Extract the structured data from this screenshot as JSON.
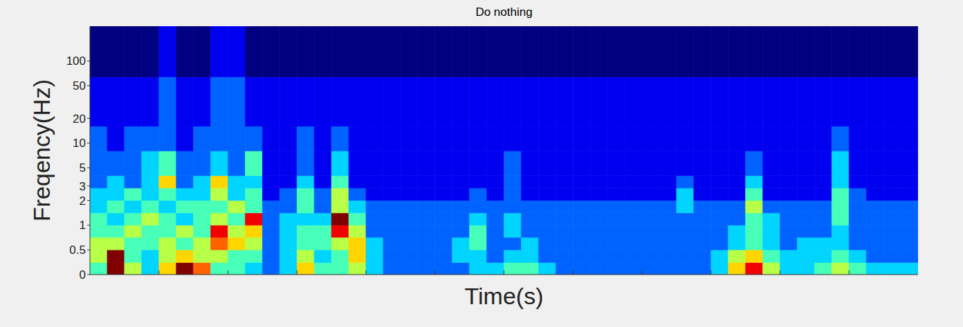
{
  "chart_data": {
    "type": "heatmap",
    "title": "Do nothing",
    "x_label": "Time(s)",
    "y_label": "Freqency(Hz)",
    "log": "y",
    "tick_labels": "y",
    "xlim": [
      0,
      12
    ],
    "xticks": [
      1,
      2,
      3,
      4,
      5,
      6,
      7,
      8,
      9,
      10,
      11
    ],
    "ylim": [
      0.25,
      265
    ],
    "yticks": [
      {
        "value": 0.25,
        "label": "0"
      },
      0.5,
      1,
      2,
      3,
      5,
      10,
      20,
      50,
      100
    ],
    "freq_edges": [
      0.25,
      0.35,
      0.5,
      0.71,
      1,
      1.41,
      2,
      2.83,
      4,
      8,
      16,
      64,
      265
    ],
    "cells": [
      [
        4,
        9,
        5,
        3,
        6,
        9,
        7,
        4,
        4,
        3,
        2,
        3,
        6,
        4,
        4,
        5,
        3,
        2,
        2,
        2,
        2,
        2,
        3,
        3,
        4,
        4,
        3,
        2,
        2,
        2,
        2,
        2,
        2,
        2,
        2,
        2,
        3,
        6,
        8,
        5,
        3,
        3,
        4,
        5,
        4,
        3,
        3,
        3
      ],
      [
        5,
        9,
        4,
        3,
        5,
        6,
        5,
        5,
        4,
        4,
        2,
        3,
        5,
        3,
        4,
        6,
        3,
        2,
        2,
        2,
        2,
        3,
        3,
        2,
        3,
        3,
        2,
        2,
        2,
        2,
        2,
        2,
        2,
        2,
        2,
        2,
        3,
        5,
        6,
        4,
        3,
        3,
        3,
        4,
        3,
        2,
        2,
        2
      ],
      [
        5,
        5,
        4,
        4,
        5,
        4,
        5,
        7,
        6,
        5,
        2,
        3,
        4,
        4,
        5,
        6,
        3,
        2,
        2,
        2,
        2,
        3,
        4,
        2,
        2,
        3,
        2,
        2,
        2,
        2,
        2,
        2,
        2,
        2,
        2,
        2,
        2,
        3,
        4,
        3,
        2,
        3,
        3,
        3,
        2,
        2,
        2,
        2
      ],
      [
        4,
        4,
        5,
        4,
        4,
        5,
        4,
        8,
        5,
        6,
        2,
        3,
        4,
        4,
        8,
        5,
        2,
        2,
        2,
        2,
        2,
        2,
        4,
        2,
        3,
        2,
        2,
        2,
        2,
        2,
        2,
        2,
        2,
        2,
        2,
        2,
        2,
        3,
        4,
        3,
        2,
        2,
        2,
        3,
        2,
        2,
        2,
        2
      ],
      [
        4,
        3,
        4,
        5,
        4,
        3,
        4,
        5,
        4,
        8,
        2,
        3,
        3,
        3,
        9,
        4,
        2,
        2,
        2,
        2,
        2,
        2,
        3,
        2,
        3,
        2,
        2,
        2,
        2,
        2,
        2,
        2,
        2,
        2,
        2,
        2,
        2,
        2,
        4,
        3,
        2,
        2,
        2,
        4,
        2,
        2,
        2,
        2
      ],
      [
        3,
        4,
        3,
        4,
        3,
        4,
        4,
        4,
        5,
        4,
        2,
        2,
        4,
        2,
        5,
        3,
        2,
        2,
        2,
        2,
        2,
        2,
        2,
        2,
        2,
        2,
        2,
        2,
        2,
        2,
        2,
        2,
        2,
        2,
        3,
        2,
        2,
        2,
        5,
        2,
        2,
        2,
        2,
        4,
        2,
        2,
        2,
        2
      ],
      [
        3,
        3,
        4,
        3,
        4,
        3,
        3,
        5,
        3,
        4,
        1,
        2,
        4,
        2,
        5,
        2,
        1,
        1,
        1,
        1,
        1,
        1,
        2,
        1,
        2,
        1,
        1,
        1,
        1,
        1,
        1,
        1,
        1,
        1,
        3,
        1,
        1,
        1,
        4,
        1,
        1,
        1,
        1,
        4,
        2,
        1,
        1,
        1
      ],
      [
        2,
        3,
        2,
        3,
        6,
        2,
        3,
        6,
        3,
        3,
        1,
        1,
        3,
        1,
        4,
        1,
        1,
        1,
        1,
        1,
        1,
        1,
        1,
        1,
        2,
        1,
        1,
        1,
        1,
        1,
        1,
        1,
        1,
        1,
        2,
        1,
        1,
        1,
        3,
        1,
        1,
        1,
        1,
        3,
        1,
        1,
        1,
        1
      ],
      [
        2,
        2,
        2,
        3,
        4,
        2,
        2,
        3,
        2,
        4,
        1,
        1,
        2,
        1,
        3,
        1,
        1,
        1,
        1,
        1,
        1,
        1,
        1,
        1,
        2,
        1,
        1,
        1,
        1,
        1,
        1,
        1,
        1,
        1,
        1,
        1,
        1,
        1,
        2,
        1,
        1,
        1,
        1,
        3,
        1,
        1,
        1,
        1
      ],
      [
        2,
        1,
        2,
        2,
        2,
        1,
        2,
        2,
        2,
        2,
        1,
        1,
        2,
        1,
        2,
        1,
        1,
        1,
        1,
        1,
        1,
        1,
        1,
        1,
        1,
        1,
        1,
        1,
        1,
        1,
        1,
        1,
        1,
        1,
        1,
        1,
        1,
        1,
        1,
        1,
        1,
        1,
        1,
        2,
        1,
        1,
        1,
        1
      ],
      [
        1,
        1,
        1,
        1,
        2,
        1,
        1,
        2,
        2,
        1,
        1,
        1,
        1,
        1,
        1,
        1,
        1,
        1,
        1,
        1,
        1,
        1,
        1,
        1,
        1,
        1,
        1,
        1,
        1,
        1,
        1,
        1,
        1,
        1,
        1,
        1,
        1,
        1,
        1,
        1,
        1,
        1,
        1,
        1,
        1,
        1,
        1,
        1
      ],
      [
        0,
        0,
        0,
        0,
        1,
        0,
        0,
        1,
        1,
        0,
        0,
        0,
        0,
        0,
        0,
        0,
        0,
        0,
        0,
        0,
        0,
        0,
        0,
        0,
        0,
        0,
        0,
        0,
        0,
        0,
        0,
        0,
        0,
        0,
        0,
        0,
        0,
        0,
        0,
        0,
        0,
        0,
        0,
        0,
        0,
        0,
        0,
        0
      ]
    ]
  }
}
